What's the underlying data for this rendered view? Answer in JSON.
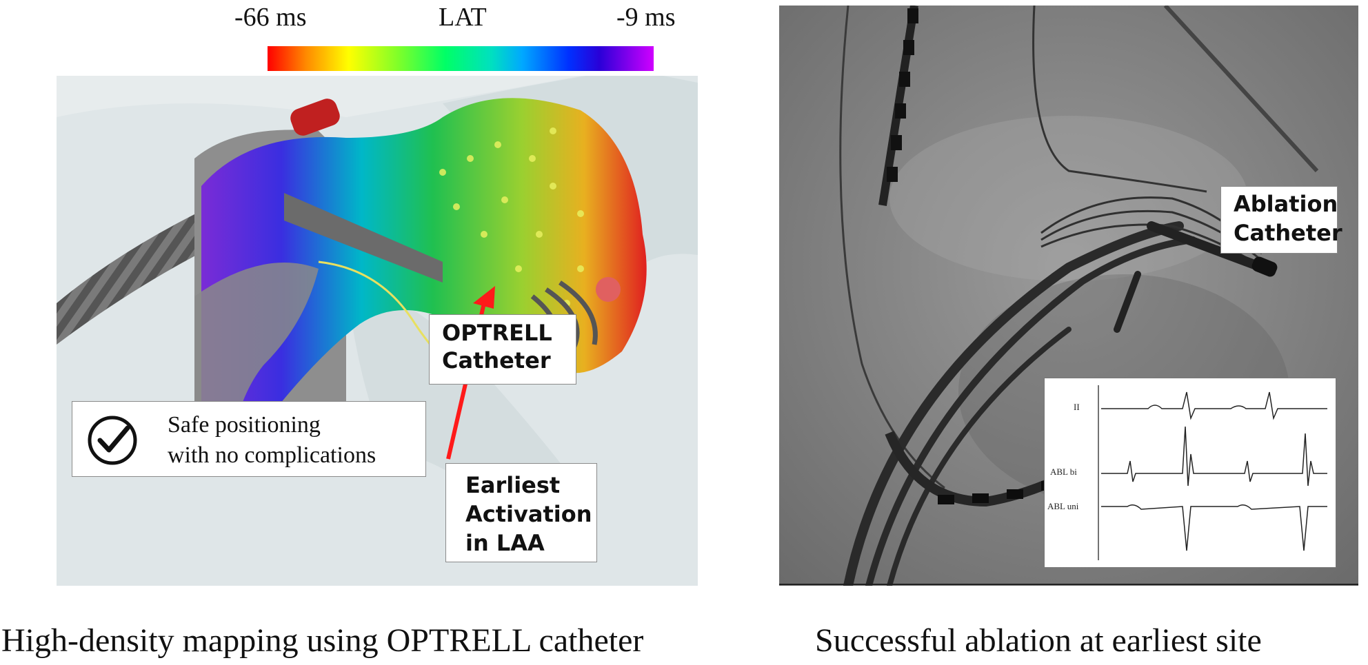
{
  "lat_scale": {
    "min_label": "-66 ms",
    "title": "LAT",
    "max_label": "-9 ms",
    "colors": [
      "#ff0000",
      "#ffff00",
      "#00ff66",
      "#00a8ff",
      "#0030ff",
      "#d000ff"
    ]
  },
  "left_panel": {
    "optrell_callout": {
      "line1": "OPTRELL",
      "line2": "Catheter"
    },
    "earliest_callout": {
      "line1": "Earliest",
      "line2": "Activation",
      "line3": "in LAA"
    },
    "safe_box": {
      "line1": "Safe positioning",
      "line2": "with no complications",
      "icon": "check-circle-icon"
    },
    "arrow_color": "#ff1a1a"
  },
  "right_panel": {
    "ablation_callout": {
      "line1": "Ablation",
      "line2": "Catheter"
    },
    "ecg_inset": {
      "leads": [
        "II",
        "ABL bi",
        "ABL uni"
      ]
    }
  },
  "captions": {
    "left": "High-density mapping using OPTRELL catheter",
    "right": "Successful ablation at earliest site"
  }
}
